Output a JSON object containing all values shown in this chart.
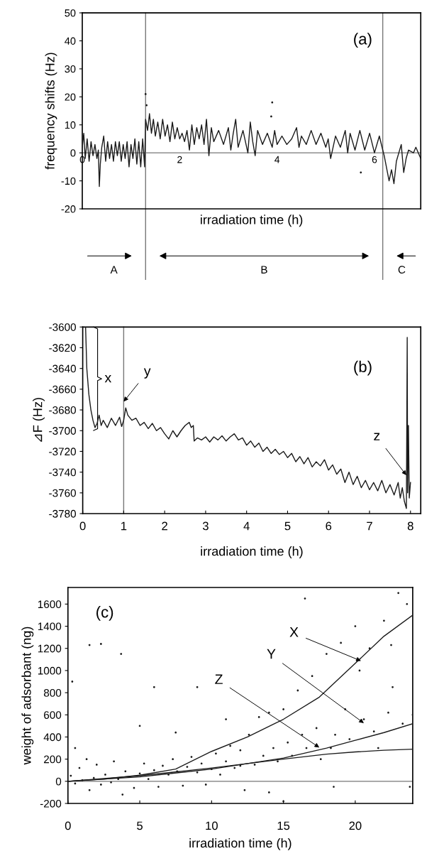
{
  "chart_data": [
    {
      "type": "line",
      "annotations": [
        "(a)",
        "A",
        "B",
        "C"
      ],
      "xlabel": "irradiation time (h)",
      "ylabel": "frequency shifts (Hz)",
      "xlim": [
        0,
        6.95
      ],
      "ylim": [
        -20,
        50
      ],
      "xticks": [
        0,
        2,
        4,
        6
      ],
      "yticks": [
        -20,
        -10,
        0,
        10,
        20,
        30,
        40,
        50
      ],
      "ref_lines": [
        {
          "axis": "x",
          "value": 1.3,
          "color": "#777777"
        },
        {
          "axis": "x",
          "value": 6.17,
          "color": "#777777"
        }
      ],
      "series": [
        {
          "color": "#1a1a1a",
          "x": [
            0,
            0.03,
            0.06,
            0.1,
            0.14,
            0.18,
            0.22,
            0.26,
            0.3,
            0.33,
            0.35,
            0.37,
            0.4,
            0.44,
            0.48,
            0.52,
            0.56,
            0.6,
            0.64,
            0.68,
            0.72,
            0.76,
            0.8,
            0.84,
            0.88,
            0.92,
            0.96,
            1.0,
            1.04,
            1.08,
            1.12,
            1.16,
            1.2,
            1.24,
            1.28,
            1.3,
            1.34,
            1.38,
            1.42,
            1.46,
            1.5,
            1.55,
            1.6,
            1.65,
            1.7,
            1.75,
            1.8,
            1.85,
            1.9,
            1.95,
            2.0,
            2.05,
            2.1,
            2.15,
            2.2,
            2.25,
            2.3,
            2.35,
            2.4,
            2.45,
            2.5,
            2.55,
            2.6,
            2.65,
            2.7,
            2.8,
            2.9,
            3.0,
            3.05,
            3.1,
            3.15,
            3.2,
            3.3,
            3.4,
            3.45,
            3.5,
            3.55,
            3.6,
            3.7,
            3.8,
            3.9,
            3.95,
            4.0,
            4.1,
            4.2,
            4.3,
            4.4,
            4.45,
            4.5,
            4.6,
            4.7,
            4.8,
            4.9,
            5.0,
            5.05,
            5.1,
            5.2,
            5.3,
            5.4,
            5.45,
            5.5,
            5.6,
            5.7,
            5.8,
            5.9,
            6.0,
            6.1,
            6.17,
            6.2,
            6.3,
            6.35,
            6.4,
            6.45,
            6.55,
            6.6,
            6.65,
            6.7,
            6.8,
            6.85,
            6.95
          ],
          "values": [
            2,
            7,
            -2,
            5,
            -3,
            4,
            -1,
            3,
            -2,
            1,
            -12,
            -4,
            2,
            6,
            -3,
            4,
            -2,
            3,
            -3,
            4,
            -1,
            4,
            -3,
            3,
            -2,
            4,
            -5,
            3,
            -2,
            5,
            -4,
            4,
            -5,
            5,
            -5,
            12,
            8,
            14,
            7,
            12,
            6,
            11,
            5,
            12,
            6,
            10,
            4,
            11,
            5,
            9,
            5,
            7,
            4,
            8,
            1,
            10,
            3,
            9,
            5,
            10,
            3,
            12,
            -1,
            9,
            4,
            8,
            3,
            9,
            1,
            7,
            12,
            2,
            8,
            0,
            11,
            4,
            -1,
            8,
            3,
            7,
            2,
            8,
            3,
            6,
            3,
            5,
            9,
            2,
            6,
            3,
            8,
            3,
            7,
            2,
            5,
            -2,
            6,
            2,
            8,
            0,
            7,
            1,
            8,
            1,
            7,
            0,
            6,
            1,
            -1,
            -10,
            -6,
            -11,
            -3,
            3,
            -7,
            -2,
            1,
            0,
            2,
            -2
          ]
        },
        {
          "type": "scatter",
          "color": "#1a1a1a",
          "x": [
            1.3,
            1.32,
            3.88,
            3.9,
            5.72
          ],
          "values": [
            21,
            17,
            13,
            18,
            -7
          ]
        }
      ]
    },
    {
      "type": "line",
      "annotations": [
        "(b)",
        "x",
        {
          "text": "y",
          "x": 1.0,
          "y": -3672
        },
        {
          "text": "z",
          "x": 7.9,
          "y": -3743
        }
      ],
      "xlabel": "irradiation time (h)",
      "ylabel": "⊿F (Hz)",
      "xlim": [
        0,
        8.25
      ],
      "ylim": [
        -3780,
        -3600
      ],
      "xticks": [
        0,
        1,
        2,
        3,
        4,
        5,
        6,
        7,
        8
      ],
      "yticks": [
        -3780,
        -3760,
        -3740,
        -3720,
        -3700,
        -3680,
        -3660,
        -3640,
        -3620,
        -3600
      ],
      "ref_lines": [
        {
          "axis": "x",
          "value": 1.0,
          "color": "#777777"
        }
      ],
      "series": [
        {
          "color": "#1a1a1a",
          "x": [
            0.07,
            0.1,
            0.15,
            0.2,
            0.25,
            0.3,
            0.35,
            0.4,
            0.45,
            0.5,
            0.6,
            0.7,
            0.8,
            0.9,
            0.95,
            1.0,
            1.05,
            1.1,
            1.2,
            1.3,
            1.4,
            1.5,
            1.6,
            1.7,
            1.8,
            1.9,
            2.0,
            2.1,
            2.2,
            2.3,
            2.4,
            2.5,
            2.6,
            2.65,
            2.7,
            2.72,
            2.8,
            2.9,
            3.0,
            3.1,
            3.2,
            3.3,
            3.4,
            3.5,
            3.6,
            3.7,
            3.8,
            3.9,
            4.0,
            4.1,
            4.2,
            4.3,
            4.4,
            4.5,
            4.6,
            4.7,
            4.8,
            4.9,
            5.0,
            5.1,
            5.2,
            5.3,
            5.4,
            5.5,
            5.6,
            5.7,
            5.8,
            5.9,
            6.0,
            6.1,
            6.2,
            6.3,
            6.4,
            6.5,
            6.6,
            6.7,
            6.8,
            6.9,
            7.0,
            7.1,
            7.2,
            7.3,
            7.4,
            7.5,
            7.6,
            7.7,
            7.75,
            7.8,
            7.85,
            7.9,
            7.92,
            7.93,
            7.95,
            7.97,
            8.0
          ],
          "values": [
            -3600,
            -3640,
            -3665,
            -3680,
            -3690,
            -3697,
            -3693,
            -3685,
            -3695,
            -3690,
            -3697,
            -3688,
            -3695,
            -3687,
            -3696,
            -3690,
            -3678,
            -3685,
            -3690,
            -3688,
            -3695,
            -3692,
            -3698,
            -3693,
            -3700,
            -3697,
            -3703,
            -3708,
            -3700,
            -3706,
            -3700,
            -3695,
            -3692,
            -3697,
            -3695,
            -3710,
            -3707,
            -3709,
            -3706,
            -3711,
            -3706,
            -3709,
            -3705,
            -3710,
            -3706,
            -3703,
            -3709,
            -3707,
            -3714,
            -3710,
            -3716,
            -3712,
            -3720,
            -3716,
            -3722,
            -3718,
            -3723,
            -3720,
            -3726,
            -3722,
            -3730,
            -3725,
            -3732,
            -3726,
            -3735,
            -3730,
            -3734,
            -3728,
            -3738,
            -3733,
            -3742,
            -3737,
            -3750,
            -3740,
            -3752,
            -3744,
            -3755,
            -3748,
            -3757,
            -3750,
            -3758,
            -3748,
            -3760,
            -3752,
            -3762,
            -3750,
            -3765,
            -3755,
            -3768,
            -3775,
            -3610,
            -3760,
            -3695,
            -3765,
            -3750
          ]
        }
      ]
    },
    {
      "type": "scatter",
      "annotations": [
        "(c)",
        {
          "text": "X",
          "x": 20.4,
          "y": 1087
        },
        {
          "text": "Y",
          "x": 20.6,
          "y": 525
        },
        {
          "text": "Z",
          "x": 17.5,
          "y": 305
        }
      ],
      "xlabel": "irradiation time (h)",
      "ylabel": "weight of adsorbant (ng)",
      "xlim": [
        0,
        24
      ],
      "ylim": [
        -200,
        1750
      ],
      "xticks": [
        0,
        5,
        10,
        15,
        20
      ],
      "yticks": [
        -200,
        0,
        200,
        400,
        600,
        800,
        1000,
        1200,
        1400,
        1600
      ],
      "ref_lines": [
        {
          "axis": "y",
          "value": 0,
          "color": "#777777"
        }
      ],
      "series": [
        {
          "color": "#1a1a1a",
          "x": [
            0.2,
            0.5,
            0.8,
            1,
            1.3,
            1.5,
            1.8,
            2,
            2.3,
            2.6,
            3,
            3.2,
            3.5,
            3.8,
            4,
            4.3,
            4.6,
            5,
            5.3,
            5.6,
            6,
            6.3,
            6.6,
            7,
            7.3,
            7.6,
            8,
            8.3,
            8.6,
            9,
            9.3,
            9.6,
            10,
            10.3,
            10.6,
            11,
            11.3,
            11.6,
            12,
            12.3,
            12.6,
            13,
            13.3,
            13.6,
            14,
            14.3,
            14.6,
            15,
            15.3,
            15.6,
            16,
            16.3,
            16.6,
            17,
            17.3,
            17.6,
            18,
            18.3,
            18.6,
            19,
            19.3,
            19.6,
            20,
            20.3,
            20.6,
            21,
            21.3,
            21.6,
            22,
            22.3,
            22.6,
            23,
            23.3,
            23.6,
            24,
            0.3,
            0.5,
            1.5,
            2.3,
            3.7,
            5,
            6,
            7.5,
            9,
            11,
            12,
            14,
            15,
            16.5,
            18.5,
            22.5,
            23.8
          ],
          "values": [
            50,
            -20,
            120,
            10,
            200,
            -80,
            30,
            150,
            -30,
            60,
            -10,
            180,
            20,
            -120,
            90,
            40,
            -60,
            70,
            160,
            20,
            100,
            -50,
            140,
            60,
            200,
            90,
            -40,
            130,
            220,
            80,
            160,
            -30,
            110,
            250,
            60,
            180,
            320,
            120,
            140,
            -80,
            420,
            150,
            580,
            230,
            620,
            300,
            180,
            650,
            350,
            230,
            820,
            420,
            300,
            950,
            480,
            200,
            1150,
            300,
            420,
            1250,
            650,
            380,
            1400,
            1000,
            560,
            1200,
            450,
            300,
            1450,
            620,
            850,
            1700,
            520,
            1600,
            600,
            900,
            300,
            1230,
            1240,
            1150,
            500,
            850,
            440,
            850,
            560,
            280,
            -100,
            -180,
            1650,
            -50,
            1230,
            -50
          ]
        },
        {
          "type": "line",
          "color": "#1a1a1a",
          "x": [
            0,
            2.5,
            5,
            7.5,
            10,
            12.5,
            15,
            17.5,
            20,
            22,
            24
          ],
          "values": [
            0,
            20,
            55,
            110,
            270,
            400,
            560,
            760,
            1065,
            1310,
            1500
          ]
        },
        {
          "type": "line",
          "color": "#1a1a1a",
          "x": [
            0,
            5,
            10,
            15,
            18,
            20,
            22,
            24
          ],
          "values": [
            0,
            40,
            110,
            210,
            300,
            370,
            440,
            520
          ]
        },
        {
          "type": "line",
          "color": "#1a1a1a",
          "x": [
            0,
            5,
            10,
            15,
            18,
            20,
            22,
            24
          ],
          "values": [
            0,
            50,
            120,
            200,
            245,
            265,
            280,
            290
          ]
        }
      ]
    }
  ]
}
